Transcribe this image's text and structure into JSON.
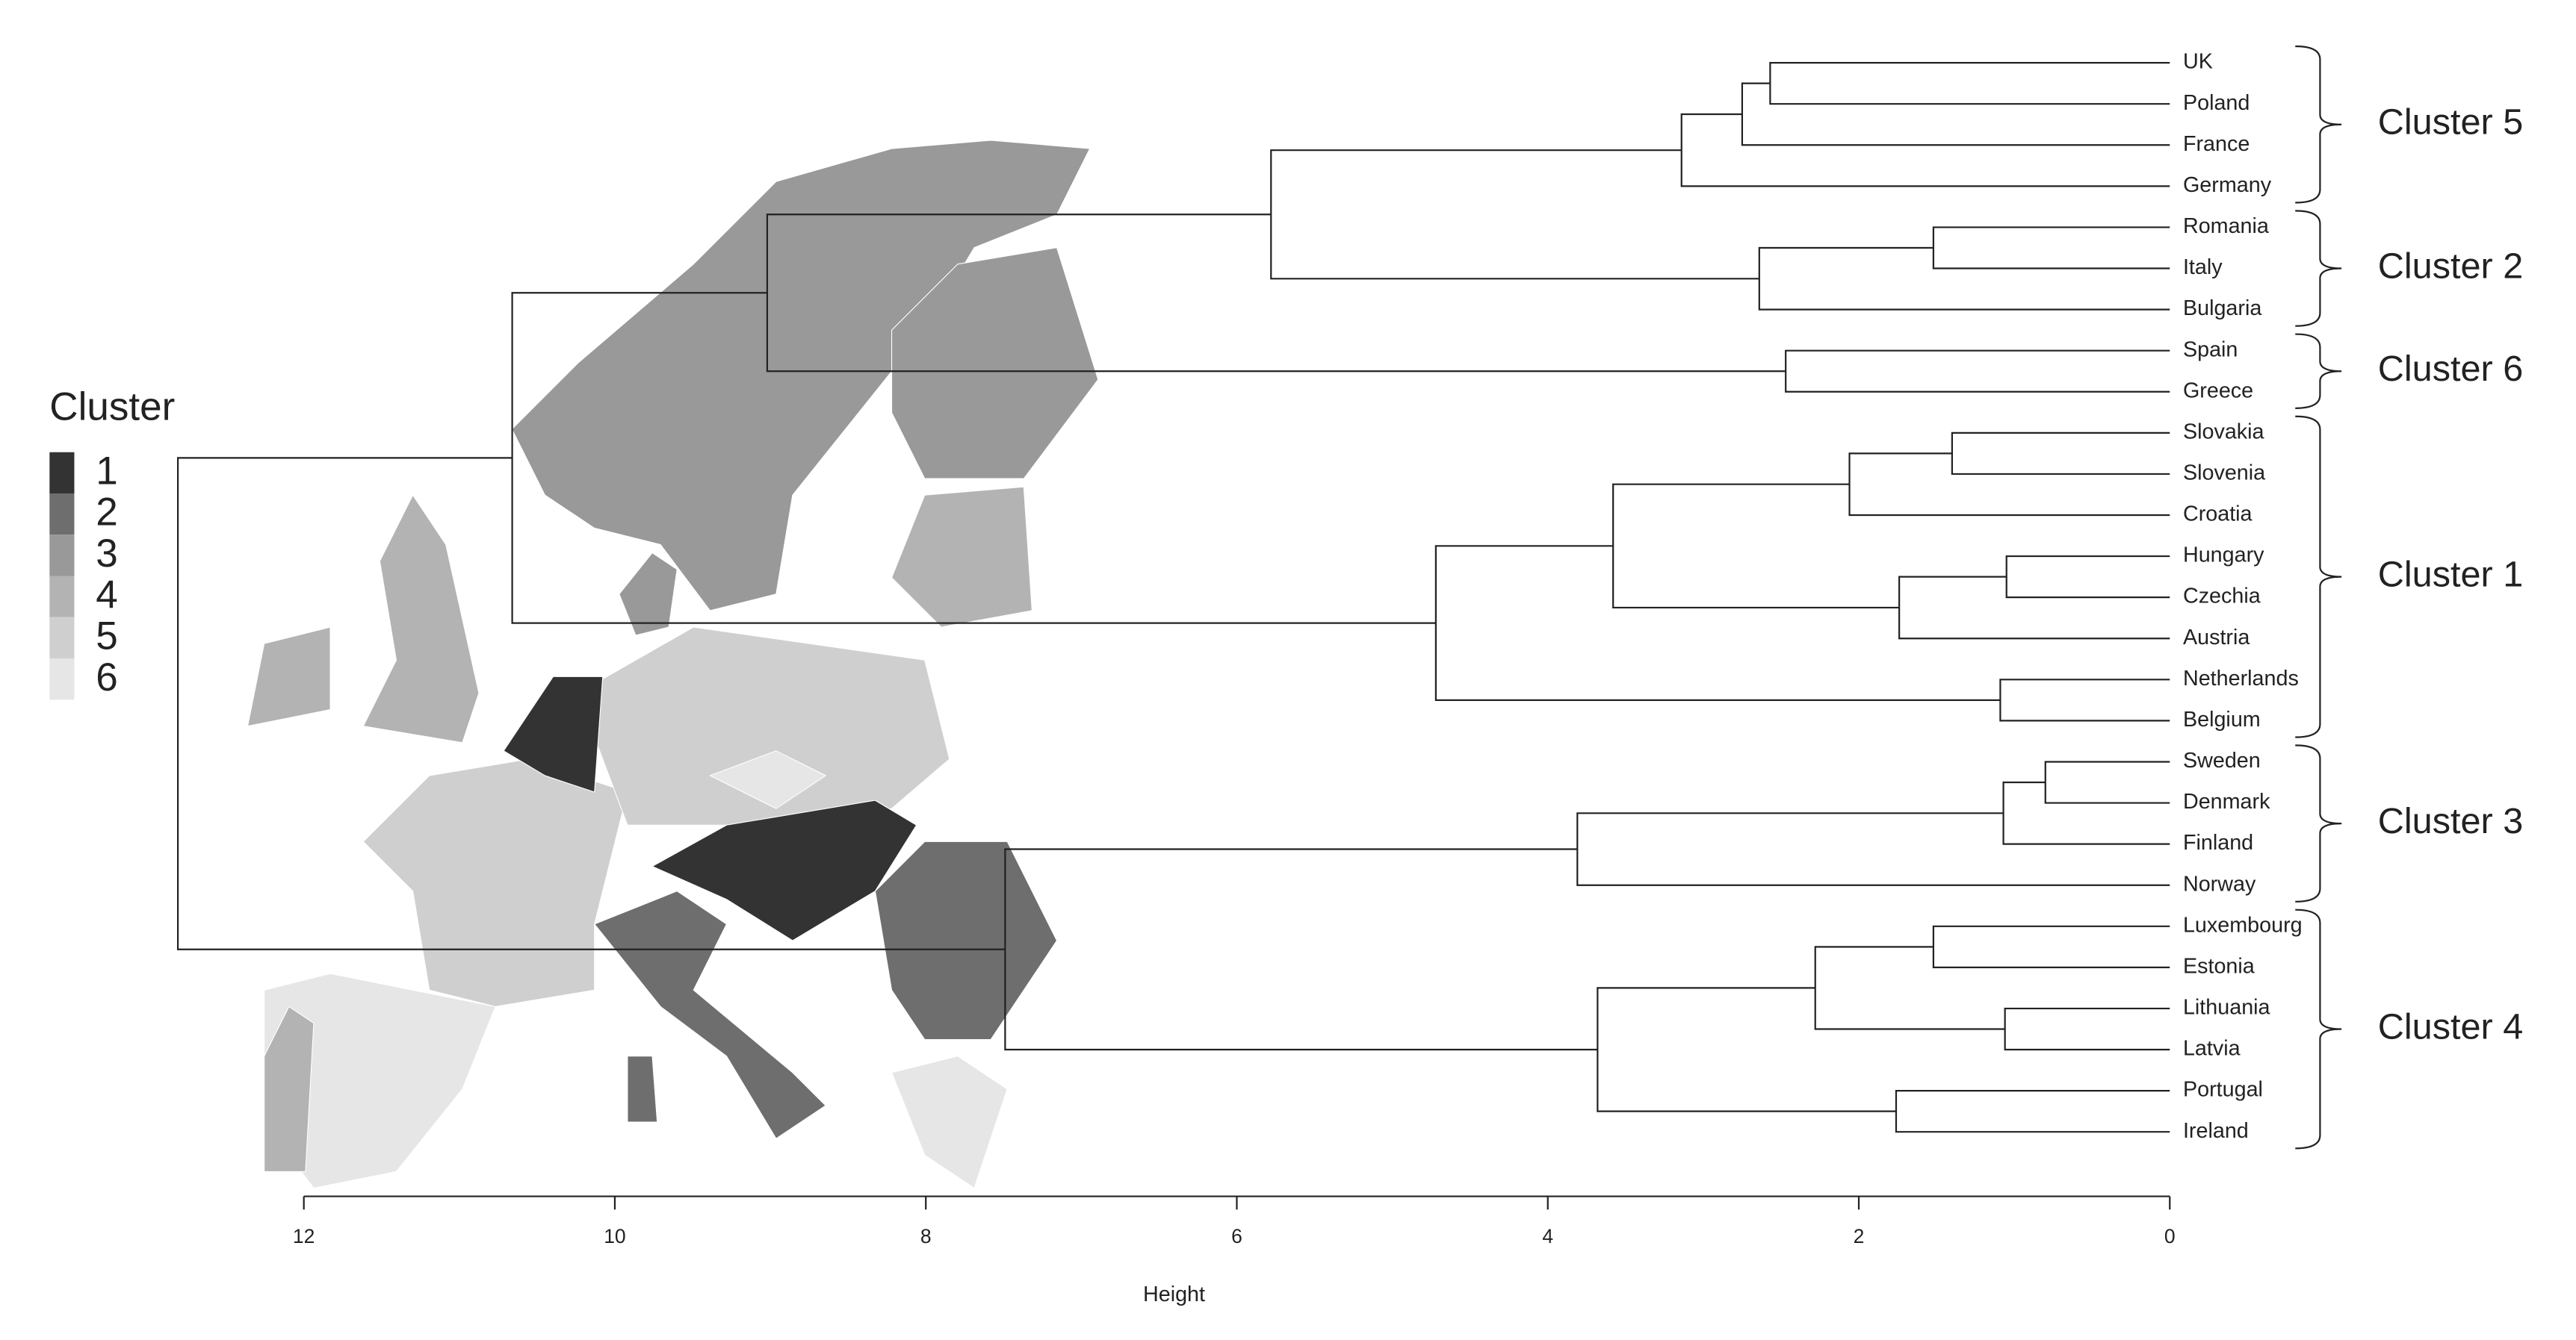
{
  "chart_data": {
    "type": "dendrogram",
    "leaves": [
      "UK",
      "Poland",
      "France",
      "Germany",
      "Romania",
      "Italy",
      "Bulgaria",
      "Spain",
      "Greece",
      "Slovakia",
      "Slovenia",
      "Croatia",
      "Hungary",
      "Czechia",
      "Austria",
      "Netherlands",
      "Belgium",
      "Sweden",
      "Denmark",
      "Finland",
      "Norway",
      "Luxembourg",
      "Estonia",
      "Lithuania",
      "Latvia",
      "Portugal",
      "Ireland"
    ],
    "merge": [
      [
        -18,
        -19
      ],
      [
        -13,
        -14
      ],
      [
        -24,
        -25
      ],
      [
        1,
        -20
      ],
      [
        -16,
        -17
      ],
      [
        -10,
        -11
      ],
      [
        -5,
        -6
      ],
      [
        -22,
        -23
      ],
      [
        2,
        -15
      ],
      [
        -26,
        -27
      ],
      [
        6,
        -12
      ],
      [
        8,
        3
      ],
      [
        -8,
        -9
      ],
      [
        -1,
        -2
      ],
      [
        7,
        -7
      ],
      [
        14,
        -3
      ],
      [
        16,
        -4
      ],
      [
        11,
        9
      ],
      [
        12,
        10
      ],
      [
        4,
        -21
      ],
      [
        18,
        5
      ],
      [
        17,
        15
      ],
      [
        20,
        19
      ],
      [
        22,
        13
      ],
      [
        24,
        21
      ],
      [
        25,
        23
      ]
    ],
    "height": [
      0.8,
      1.05,
      1.06,
      1.07,
      1.09,
      1.4,
      1.52,
      1.52,
      1.74,
      1.76,
      2.06,
      2.28,
      2.47,
      2.57,
      2.64,
      2.75,
      3.14,
      3.58,
      3.68,
      3.81,
      4.72,
      5.78,
      7.49,
      9.02,
      10.66,
      12.81
    ],
    "x_label": "Height",
    "xlim": [
      12,
      0
    ],
    "xticks": [
      12,
      10,
      8,
      6,
      4,
      2,
      0
    ],
    "clusters": [
      {
        "label": "Cluster 5",
        "leaves": [
          0,
          3
        ]
      },
      {
        "label": "Cluster 2",
        "leaves": [
          4,
          6
        ]
      },
      {
        "label": "Cluster 6",
        "leaves": [
          7,
          8
        ]
      },
      {
        "label": "Cluster 1",
        "leaves": [
          9,
          16
        ]
      },
      {
        "label": "Cluster 3",
        "leaves": [
          17,
          20
        ]
      },
      {
        "label": "Cluster 4",
        "leaves": [
          21,
          26
        ]
      }
    ],
    "legend": {
      "title": "Cluster",
      "items": [
        {
          "label": "1",
          "color": "#333333"
        },
        {
          "label": "2",
          "color": "#6e6e6e"
        },
        {
          "label": "3",
          "color": "#999999"
        },
        {
          "label": "4",
          "color": "#b3b3b3"
        },
        {
          "label": "5",
          "color": "#cfcfcf"
        },
        {
          "label": "6",
          "color": "#e6e6e6"
        }
      ]
    }
  }
}
